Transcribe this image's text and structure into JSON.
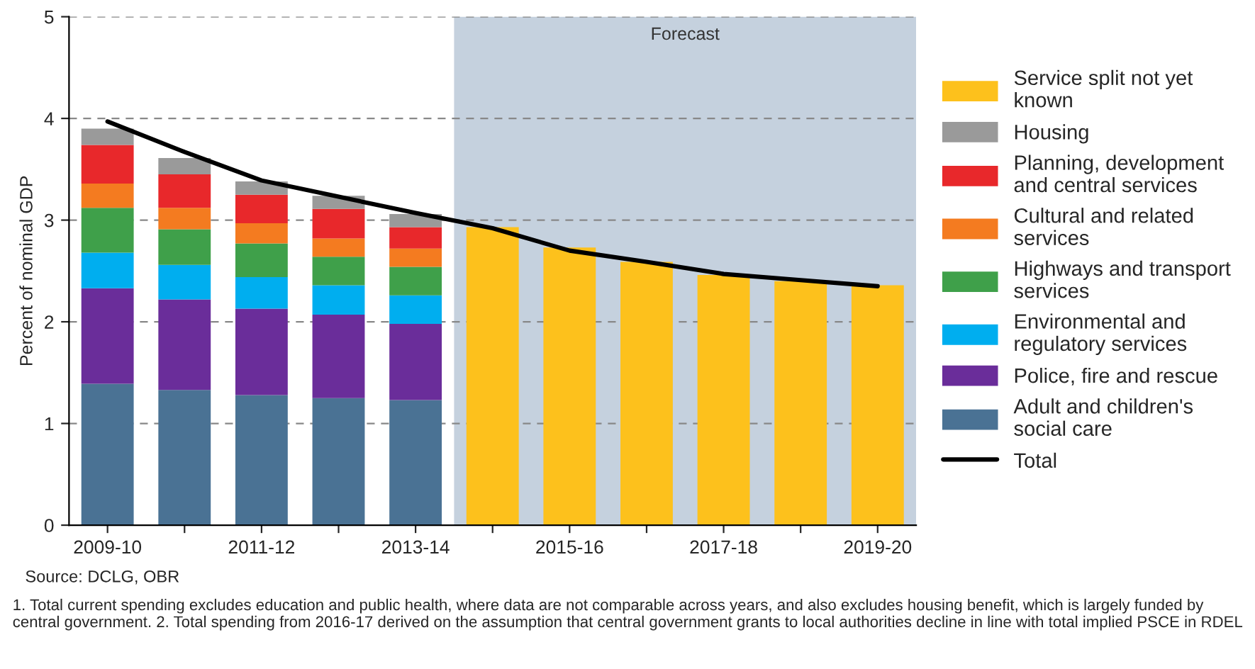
{
  "chart_data": {
    "type": "bar",
    "stacked": true,
    "ylabel": "Percent of nominal GDP",
    "categories": [
      "2009-10",
      null,
      "2011-12",
      null,
      "2013-14",
      null,
      "2015-16",
      null,
      "2017-18",
      null,
      "2019-20"
    ],
    "series": [
      {
        "name": "Adult and children's\nsocial care",
        "color": "#4a7294",
        "values": [
          1.39,
          1.33,
          1.28,
          1.25,
          1.23,
          null,
          null,
          null,
          null,
          null,
          null
        ]
      },
      {
        "name": "Police, fire and rescue",
        "color": "#6a2d9a",
        "values": [
          0.94,
          0.89,
          0.85,
          0.82,
          0.75,
          null,
          null,
          null,
          null,
          null,
          null
        ]
      },
      {
        "name": "Environmental and\nregulatory services",
        "color": "#00aeef",
        "values": [
          0.35,
          0.34,
          0.31,
          0.29,
          0.28,
          null,
          null,
          null,
          null,
          null,
          null
        ]
      },
      {
        "name": "Highways and transport\nservices",
        "color": "#3fa04a",
        "values": [
          0.44,
          0.35,
          0.33,
          0.28,
          0.28,
          null,
          null,
          null,
          null,
          null,
          null
        ]
      },
      {
        "name": "Cultural and related\nservices",
        "color": "#f47b20",
        "values": [
          0.24,
          0.21,
          0.2,
          0.18,
          0.18,
          null,
          null,
          null,
          null,
          null,
          null
        ]
      },
      {
        "name": "Planning, development\nand central services",
        "color": "#e8282b",
        "values": [
          0.38,
          0.33,
          0.28,
          0.29,
          0.21,
          null,
          null,
          null,
          null,
          null,
          null
        ]
      },
      {
        "name": "Housing",
        "color": "#9a9a9a",
        "values": [
          0.16,
          0.16,
          0.13,
          0.13,
          0.13,
          null,
          null,
          null,
          null,
          null,
          null
        ]
      },
      {
        "name": "Service split not yet\nknown",
        "color": "#fdc11c",
        "values": [
          null,
          null,
          null,
          null,
          null,
          2.93,
          2.73,
          2.59,
          2.46,
          2.4,
          2.36
        ]
      },
      {
        "name": "Total",
        "type": "line",
        "color": "#000000",
        "values": [
          3.97,
          3.67,
          3.39,
          3.23,
          3.07,
          2.92,
          2.7,
          2.59,
          2.47,
          2.41,
          2.35
        ]
      }
    ],
    "ylim": [
      0,
      5
    ],
    "yticks": [
      0,
      1,
      2,
      3,
      4,
      5
    ],
    "grid": "y",
    "legend": "right",
    "annotations": [
      "Forecast",
      "Source: DCLG, OBR",
      "1. Total current spending excludes education and public health, where data are not comparable across years, and also excludes housing benefit, which is largely funded by central government. 2. Total spending from 2016-17 derived on the assumption that central government grants to local authorities decline in line with total implied PSCE in RDEL"
    ]
  }
}
